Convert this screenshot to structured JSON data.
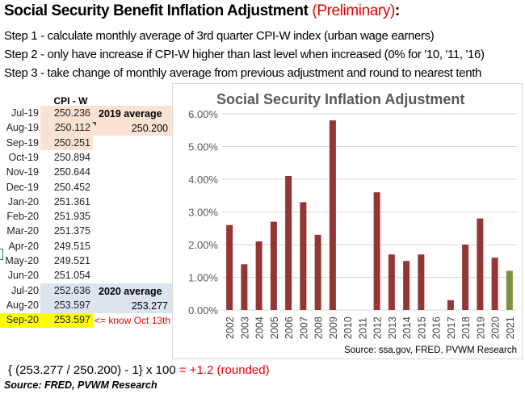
{
  "title": {
    "main": "Social Security Benefit Inflation Adjustment",
    "preliminary": "(Preliminary)",
    "colon": ":"
  },
  "steps": [
    "Step 1 - calculate monthly average of 3rd quarter CPI-W index (urban wage earners)",
    "Step 2 - only have increase if CPI-W higher than last level when increased (0% for '10, '11, '16)",
    "Step 3 - take change of monthly average from previous adjustment and round to nearest tenth"
  ],
  "table": {
    "header": "CPI - W",
    "rows": [
      {
        "date": "Jul-19",
        "value": "250.236"
      },
      {
        "date": "Aug-19",
        "value": "250.112"
      },
      {
        "date": "Sep-19",
        "value": "250.251"
      },
      {
        "date": "Oct-19",
        "value": "250.894"
      },
      {
        "date": "Nov-19",
        "value": "250.644"
      },
      {
        "date": "Dec-19",
        "value": "250.452"
      },
      {
        "date": "Jan-20",
        "value": "251.361"
      },
      {
        "date": "Feb-20",
        "value": "251.935"
      },
      {
        "date": "Mar-20",
        "value": "251.375"
      },
      {
        "date": "Apr-20",
        "value": "249.515"
      },
      {
        "date": "May-20",
        "value": "249.521"
      },
      {
        "date": "Jun-20",
        "value": "251.054"
      },
      {
        "date": "Jul-20",
        "value": "252.636"
      },
      {
        "date": "Aug-20",
        "value": "253.597"
      },
      {
        "date": "Sep-20",
        "value": "253.597"
      }
    ],
    "avg2019": {
      "label": "2019 average",
      "value": "250.200"
    },
    "avg2020": {
      "label": "2020 average",
      "value": "253.277"
    },
    "note": "<= know Oct 13th",
    "colors": {
      "avg2019_bg": "#fbe3d4",
      "avg2020_bg": "#dce5ef",
      "highlight": "#ffff00",
      "note": "#ff0000"
    }
  },
  "formula": {
    "text": "{ (253.277 / 250.200) - 1} x 100 ",
    "result": "= +1.2 (rounded)"
  },
  "source": "Source:  FRED, PVWM Research",
  "chart_data": {
    "type": "bar",
    "title": "Social Security Inflation Adjustment",
    "categories": [
      "2002",
      "2003",
      "2004",
      "2005",
      "2006",
      "2007",
      "2008",
      "2009",
      "2010",
      "2011",
      "2012",
      "2013",
      "2014",
      "2015",
      "2016",
      "2017",
      "2018",
      "2019",
      "2020",
      "2021"
    ],
    "values": [
      2.6,
      1.4,
      2.1,
      2.7,
      4.1,
      3.3,
      2.3,
      5.8,
      0,
      0,
      3.6,
      1.7,
      1.5,
      1.7,
      0,
      0.3,
      2.0,
      2.8,
      1.6,
      1.2
    ],
    "ylim": [
      0,
      6
    ],
    "yticks": [
      "0.00%",
      "1.00%",
      "2.00%",
      "3.00%",
      "4.00%",
      "5.00%",
      "6.00%"
    ],
    "grid": true,
    "colors": {
      "bar": "#943634",
      "highlight": "#77933c"
    },
    "highlight_category": "2021",
    "source": "Source:  ssa.gov, FRED, PVWM Research"
  }
}
